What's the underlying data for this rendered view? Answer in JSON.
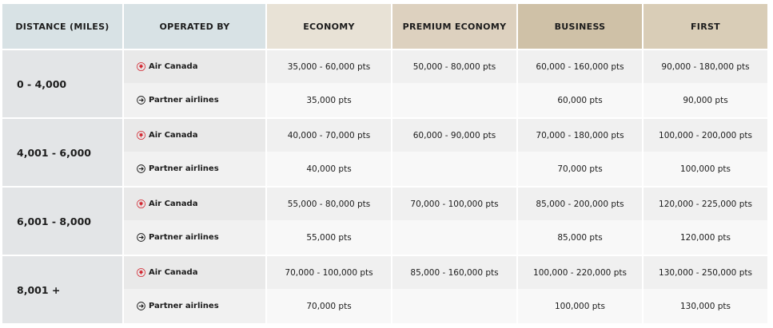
{
  "header": {
    "distance": "DISTANCE (MILES)",
    "operated_by": "OPERATED BY",
    "economy": "ECONOMY",
    "premium_economy": "PREMIUM ECONOMY",
    "business": "BUSINESS",
    "first": "FIRST"
  },
  "colors": {
    "air_canada_red": "#d22630",
    "partner_icon": "#1c1c1c"
  },
  "icons": {
    "air_canada": "maple-leaf-icon",
    "partner": "airplane-circle-icon"
  },
  "bands": [
    {
      "distance": "0 - 4,000",
      "air_canada": {
        "label": "Air Canada",
        "economy": "35,000 - 60,000 pts",
        "premium_economy": "50,000 - 80,000 pts",
        "business": "60,000 - 160,000 pts",
        "first": "90,000 - 180,000 pts"
      },
      "partner": {
        "label": "Partner airlines",
        "economy": "35,000 pts",
        "premium_economy": "",
        "business": "60,000 pts",
        "first": "90,000 pts"
      }
    },
    {
      "distance": "4,001 - 6,000",
      "air_canada": {
        "label": "Air Canada",
        "economy": "40,000 - 70,000 pts",
        "premium_economy": "60,000 - 90,000 pts",
        "business": "70,000 - 180,000 pts",
        "first": "100,000 - 200,000 pts"
      },
      "partner": {
        "label": "Partner airlines",
        "economy": "40,000 pts",
        "premium_economy": "",
        "business": "70,000 pts",
        "first": "100,000 pts"
      }
    },
    {
      "distance": "6,001 - 8,000",
      "air_canada": {
        "label": "Air Canada",
        "economy": "55,000 - 80,000 pts",
        "premium_economy": "70,000 - 100,000 pts",
        "business": "85,000 - 200,000 pts",
        "first": "120,000 - 225,000 pts"
      },
      "partner": {
        "label": "Partner airlines",
        "economy": "55,000 pts",
        "premium_economy": "",
        "business": "85,000 pts",
        "first": "120,000 pts"
      }
    },
    {
      "distance": "8,001 +",
      "air_canada": {
        "label": "Air Canada",
        "economy": "70,000 - 100,000 pts",
        "premium_economy": "85,000 - 160,000 pts",
        "business": "100,000 - 220,000 pts",
        "first": "130,000 - 250,000 pts"
      },
      "partner": {
        "label": "Partner airlines",
        "economy": "70,000 pts",
        "premium_economy": "",
        "business": "100,000 pts",
        "first": "130,000 pts"
      }
    }
  ]
}
